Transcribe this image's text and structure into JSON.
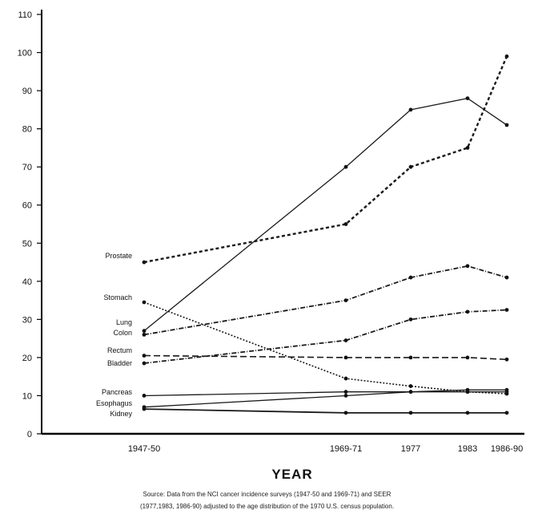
{
  "chart_data": {
    "type": "line",
    "xlabel": "YEAR",
    "ylabel": "",
    "ylim": [
      0,
      110
    ],
    "yticks": [
      0,
      10,
      20,
      30,
      40,
      50,
      60,
      70,
      80,
      90,
      100,
      110
    ],
    "x": [
      "1947-50",
      "1969-71",
      "1977",
      "1983",
      "1986-90"
    ],
    "grid": false,
    "series": [
      {
        "name": "Prostate",
        "style": "dotted-bold",
        "values": [
          45,
          55,
          70,
          75,
          99
        ]
      },
      {
        "name": "Lung",
        "style": "solid",
        "values": [
          27,
          70,
          85,
          88,
          81
        ]
      },
      {
        "name": "Colon",
        "style": "dash-dot",
        "values": [
          26,
          35,
          41,
          44,
          41
        ]
      },
      {
        "name": "Stomach",
        "style": "dotted",
        "values": [
          34.5,
          14.5,
          12.5,
          11,
          10.5
        ]
      },
      {
        "name": "Rectum",
        "style": "dashed",
        "values": [
          20.5,
          20,
          20,
          20,
          19.5
        ]
      },
      {
        "name": "Bladder",
        "style": "dash-dot",
        "values": [
          18.5,
          24.5,
          30,
          32,
          32.5
        ]
      },
      {
        "name": "Pancreas",
        "style": "solid",
        "values": [
          10,
          11,
          11,
          11.5,
          11.5
        ]
      },
      {
        "name": "Esophagus",
        "style": "solid",
        "values": [
          7,
          10,
          11,
          11,
          11
        ]
      },
      {
        "name": "Kidney",
        "style": "solid-bold",
        "values": [
          6.5,
          5.5,
          5.5,
          5.5,
          5.5
        ]
      }
    ]
  },
  "source_note": {
    "line1": "Source: Data from the NCI cancer incidence surveys (1947-50 and 1969-71) and SEER",
    "line2": "(1977,1983, 1986-90) adjusted to the age distribution of the 1970 U.S. census population."
  }
}
